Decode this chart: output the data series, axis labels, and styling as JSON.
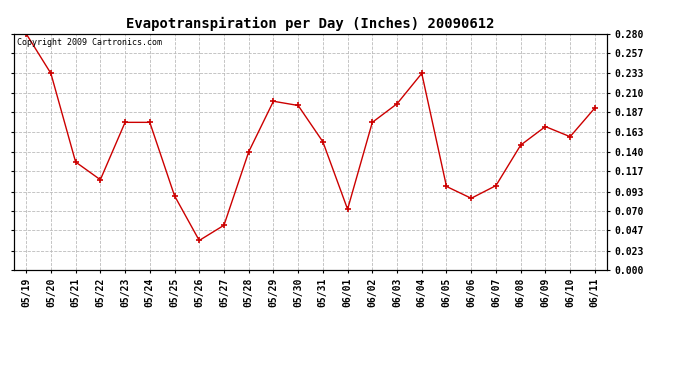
{
  "title": "Evapotranspiration per Day (Inches) 20090612",
  "copyright_text": "Copyright 2009 Cartronics.com",
  "x_labels": [
    "05/19",
    "05/20",
    "05/21",
    "05/22",
    "05/23",
    "05/24",
    "05/25",
    "05/26",
    "05/27",
    "05/28",
    "05/29",
    "05/30",
    "05/31",
    "06/01",
    "06/02",
    "06/03",
    "06/04",
    "06/05",
    "06/06",
    "06/07",
    "06/08",
    "06/09",
    "06/10",
    "06/11"
  ],
  "y_values": [
    0.28,
    0.233,
    0.128,
    0.107,
    0.175,
    0.175,
    0.088,
    0.035,
    0.053,
    0.14,
    0.2,
    0.195,
    0.152,
    0.072,
    0.175,
    0.197,
    0.233,
    0.099,
    0.085,
    0.1,
    0.148,
    0.17,
    0.158,
    0.192
  ],
  "y_ticks": [
    0.0,
    0.023,
    0.047,
    0.07,
    0.093,
    0.117,
    0.14,
    0.163,
    0.187,
    0.21,
    0.233,
    0.257,
    0.28
  ],
  "line_color": "#cc0000",
  "marker_color": "#cc0000",
  "bg_color": "#ffffff",
  "grid_color": "#bbbbbb",
  "y_min": 0.0,
  "y_max": 0.28,
  "title_fontsize": 10,
  "tick_fontsize": 7,
  "copyright_fontsize": 6
}
